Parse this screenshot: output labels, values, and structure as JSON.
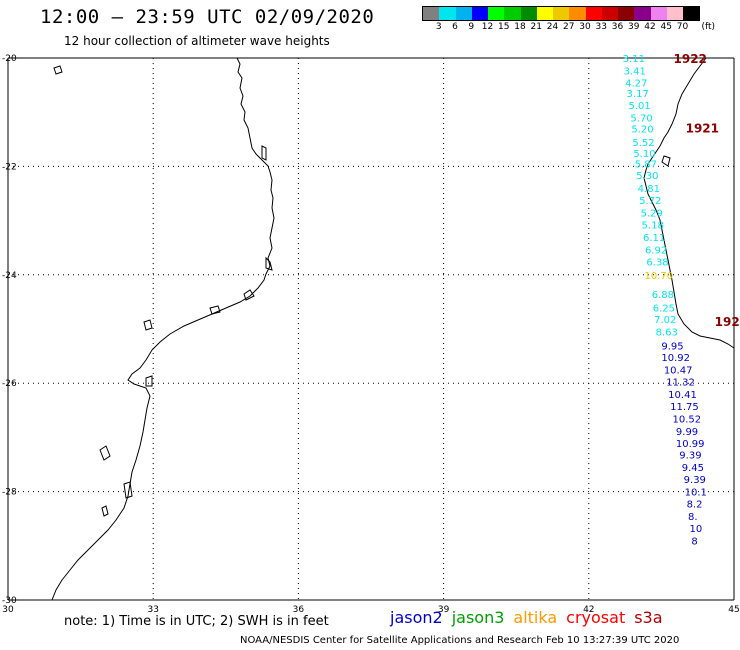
{
  "header": {
    "title": "12:00 – 23:59 UTC 02/09/2020",
    "subtitle": "12 hour collection of altimeter wave heights"
  },
  "colorbar": {
    "unit": "(ft)",
    "labels": [
      "3",
      "6",
      "9",
      "12",
      "15",
      "18",
      "21",
      "24",
      "27",
      "30",
      "33",
      "36",
      "39",
      "42",
      "45",
      "70"
    ],
    "colors": [
      "#808080",
      "#00e5ee",
      "#00b2ee",
      "#0000ff",
      "#00ff00",
      "#00cd00",
      "#008b00",
      "#ffff00",
      "#eec900",
      "#ff8c00",
      "#ff0000",
      "#cd0000",
      "#8b0000",
      "#8b008b",
      "#ee82ee",
      "#ffc0cb",
      "#000000"
    ]
  },
  "axes": {
    "x_ticks": [
      "30",
      "33",
      "36",
      "39",
      "42",
      "45"
    ],
    "y_ticks": [
      "-20",
      "-22",
      "-24",
      "-26",
      "-28",
      "-30"
    ]
  },
  "passes": [
    {
      "label": "1922",
      "lon": 43.75,
      "lat": -20.02
    },
    {
      "label": "1921",
      "lon": 44.0,
      "lat": -21.3
    },
    {
      "label": "192",
      "lon": 44.6,
      "lat": -24.87
    }
  ],
  "observations": [
    {
      "v": "3.11",
      "lon": 42.7,
      "lat": -20.0,
      "c": "#00e5ee"
    },
    {
      "v": "3.41",
      "lon": 42.72,
      "lat": -20.23,
      "c": "#00e5ee"
    },
    {
      "v": "4.27",
      "lon": 42.75,
      "lat": -20.45,
      "c": "#00e5ee"
    },
    {
      "v": "3.17",
      "lon": 42.78,
      "lat": -20.65,
      "c": "#00e5ee"
    },
    {
      "v": "5.01",
      "lon": 42.82,
      "lat": -20.87,
      "c": "#00e5ee"
    },
    {
      "v": "5.70",
      "lon": 42.86,
      "lat": -21.1,
      "c": "#00e5ee"
    },
    {
      "v": "5.20",
      "lon": 42.88,
      "lat": -21.3,
      "c": "#00e5ee"
    },
    {
      "v": "5.52",
      "lon": 42.9,
      "lat": -21.55,
      "c": "#00e5ee"
    },
    {
      "v": "5.10",
      "lon": 42.92,
      "lat": -21.75,
      "c": "#00e5ee"
    },
    {
      "v": "5.87",
      "lon": 42.95,
      "lat": -21.95,
      "c": "#00e5ee"
    },
    {
      "v": "5.30",
      "lon": 42.98,
      "lat": -22.16,
      "c": "#00e5ee"
    },
    {
      "v": "4.81",
      "lon": 43.01,
      "lat": -22.4,
      "c": "#00e5ee"
    },
    {
      "v": "5.72",
      "lon": 43.04,
      "lat": -22.62,
      "c": "#00e5ee"
    },
    {
      "v": "5.29",
      "lon": 43.07,
      "lat": -22.85,
      "c": "#00e5ee"
    },
    {
      "v": "5.18",
      "lon": 43.09,
      "lat": -23.07,
      "c": "#00e5ee"
    },
    {
      "v": "6.11",
      "lon": 43.12,
      "lat": -23.3,
      "c": "#00e5ee"
    },
    {
      "v": "6.92",
      "lon": 43.16,
      "lat": -23.53,
      "c": "#00e5ee"
    },
    {
      "v": "6.38",
      "lon": 43.19,
      "lat": -23.75,
      "c": "#00e5ee"
    },
    {
      "v": "10.70",
      "lon": 43.15,
      "lat": -24.0,
      "c": "#eec900"
    },
    {
      "v": "6.88",
      "lon": 43.3,
      "lat": -24.35,
      "c": "#00e5ee"
    },
    {
      "v": "6.25",
      "lon": 43.32,
      "lat": -24.6,
      "c": "#00e5ee"
    },
    {
      "v": "7.02",
      "lon": 43.35,
      "lat": -24.82,
      "c": "#00e5ee"
    },
    {
      "v": "8.63",
      "lon": 43.38,
      "lat": -25.05,
      "c": "#00e5ee"
    },
    {
      "v": "9.95",
      "lon": 43.5,
      "lat": -25.3,
      "c": "#0000cd"
    },
    {
      "v": "10.92",
      "lon": 43.5,
      "lat": -25.52,
      "c": "#0000cd"
    },
    {
      "v": "10.47",
      "lon": 43.55,
      "lat": -25.75,
      "c": "#0000cd"
    },
    {
      "v": "11.32",
      "lon": 43.6,
      "lat": -25.97,
      "c": "#0000cd"
    },
    {
      "v": "10.41",
      "lon": 43.64,
      "lat": -26.2,
      "c": "#0000cd"
    },
    {
      "v": "11.75",
      "lon": 43.68,
      "lat": -26.42,
      "c": "#0000cd"
    },
    {
      "v": "10.52",
      "lon": 43.73,
      "lat": -26.65,
      "c": "#0000cd"
    },
    {
      "v": "9.99",
      "lon": 43.8,
      "lat": -26.88,
      "c": "#0000cd"
    },
    {
      "v": "10.99",
      "lon": 43.8,
      "lat": -27.1,
      "c": "#0000cd"
    },
    {
      "v": "9.39",
      "lon": 43.87,
      "lat": -27.32,
      "c": "#0000cd"
    },
    {
      "v": "9.45",
      "lon": 43.92,
      "lat": -27.55,
      "c": "#0000cd"
    },
    {
      "v": "9.39",
      "lon": 43.96,
      "lat": -27.77,
      "c": "#0000cd"
    },
    {
      "v": "10.1",
      "lon": 43.98,
      "lat": -28.0,
      "c": "#0000cd"
    },
    {
      "v": "8.2",
      "lon": 44.02,
      "lat": -28.22,
      "c": "#0000cd"
    },
    {
      "v": "8.",
      "lon": 44.05,
      "lat": -28.45,
      "c": "#0000cd"
    },
    {
      "v": "10",
      "lon": 44.08,
      "lat": -28.67,
      "c": "#0000cd"
    },
    {
      "v": "8",
      "lon": 44.12,
      "lat": -28.9,
      "c": "#0000cd"
    }
  ],
  "note": "note:  1) Time is in UTC;  2) SWH is in feet",
  "legend": [
    {
      "name": "jason2",
      "color": "#0000cd"
    },
    {
      "name": "jason3",
      "color": "#00a000"
    },
    {
      "name": "altika",
      "color": "#ff9900"
    },
    {
      "name": "cryosat",
      "color": "#ff0000"
    },
    {
      "name": "s3a",
      "color": "#b00000"
    }
  ],
  "footer": "NOAA/NESDIS Center for Satellite Applications and Research    Feb 10 13:27:39 UTC 2020"
}
